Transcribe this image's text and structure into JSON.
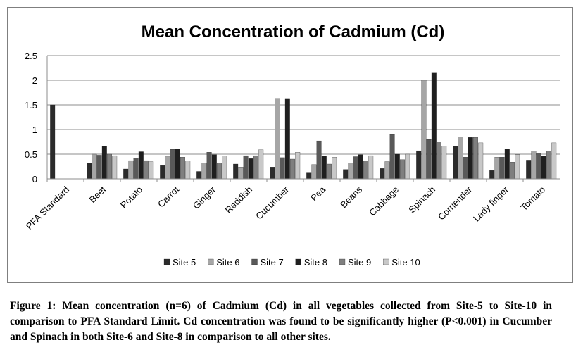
{
  "chart_data": {
    "type": "bar",
    "title": "Mean Concentration of Cadmium (Cd)",
    "xlabel": "",
    "ylabel": "",
    "ylim": [
      0,
      2.5
    ],
    "yticks": [
      "0",
      "0.5",
      "1",
      "1.5",
      "2",
      "2.5"
    ],
    "grid": true,
    "legend_position": "bottom",
    "categories": [
      "PFA Standard",
      "Beet",
      "Potato",
      "Carrot",
      "Ginger",
      "Raddish",
      "Cucumber",
      "Pea",
      "Beans",
      "Cabbage",
      "Spinach",
      "Corriender",
      "Lady finger",
      "Tomato"
    ],
    "series": [
      {
        "name": "Site 5",
        "color": "#2b2b2b",
        "values": [
          1.5,
          0.32,
          0.2,
          0.27,
          0.15,
          0.3,
          0.24,
          0.12,
          0.19,
          0.21,
          0.57,
          0.66,
          0.17,
          0.38
        ]
      },
      {
        "name": "Site 6",
        "color": "#a6a6a6",
        "values": [
          null,
          0.5,
          0.37,
          0.45,
          0.32,
          0.24,
          1.63,
          0.29,
          0.32,
          0.35,
          2.0,
          0.85,
          0.44,
          0.56
        ]
      },
      {
        "name": "Site 7",
        "color": "#595959",
        "values": [
          null,
          0.48,
          0.41,
          0.6,
          0.54,
          0.47,
          0.43,
          0.77,
          0.45,
          0.9,
          0.8,
          0.44,
          0.44,
          0.52
        ]
      },
      {
        "name": "Site 8",
        "color": "#1f1f1f",
        "values": [
          null,
          0.66,
          0.55,
          0.6,
          0.49,
          0.41,
          1.63,
          0.46,
          0.49,
          0.5,
          2.16,
          0.84,
          0.6,
          0.46
        ]
      },
      {
        "name": "Site 9",
        "color": "#7f7f7f",
        "values": [
          null,
          0.5,
          0.37,
          0.44,
          0.32,
          0.47,
          0.4,
          0.3,
          0.36,
          0.39,
          0.75,
          0.84,
          0.34,
          0.56
        ]
      },
      {
        "name": "Site 10",
        "color": "#c8c8c8",
        "values": [
          null,
          0.47,
          0.35,
          0.36,
          0.46,
          0.59,
          0.54,
          0.44,
          0.47,
          0.5,
          0.66,
          0.73,
          0.49,
          0.73
        ]
      }
    ]
  },
  "caption": "Figure 1: Mean concentration (n=6) of Cadmium (Cd) in all vegetables collected from Site-5 to Site-10 in comparison to PFA Standard Limit. Cd concentration was found to be significantly higher (P<0.001) in Cucumber and Spinach in both Site-6 and Site-8 in comparison to all other sites."
}
